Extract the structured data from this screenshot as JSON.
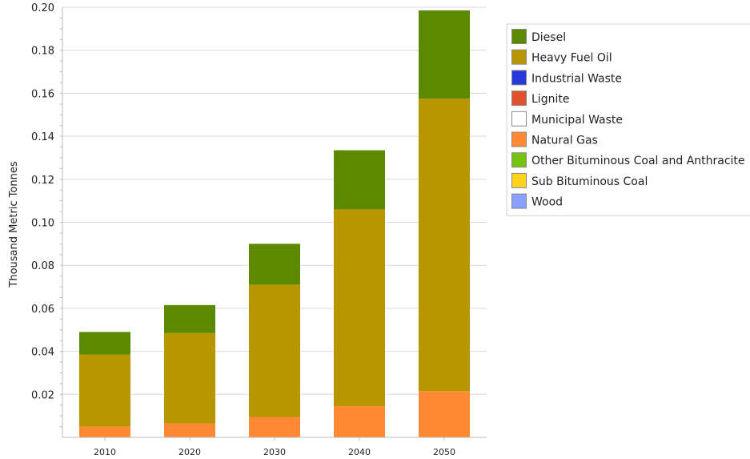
{
  "chart_data": {
    "type": "bar",
    "stacked": true,
    "ylabel": "Thousand Metric Tonnes",
    "xlabel": "",
    "ylim": [
      0,
      0.2
    ],
    "y_ticks": [
      "0.02",
      "0.04",
      "0.06",
      "0.08",
      "0.10",
      "0.12",
      "0.14",
      "0.16",
      "0.18",
      "0.20"
    ],
    "y_tick_values": [
      0.02,
      0.04,
      0.06,
      0.08,
      0.1,
      0.12,
      0.14,
      0.16,
      0.18,
      0.2
    ],
    "categories": [
      "2010",
      "2020",
      "2030",
      "2040",
      "2050"
    ],
    "grid": true,
    "legend_position": "top-right",
    "series": [
      {
        "name": "Diesel",
        "color": "#5b8a00",
        "values": [
          0.0105,
          0.013,
          0.019,
          0.0275,
          0.041
        ]
      },
      {
        "name": "Heavy Fuel Oil",
        "color": "#b89600",
        "values": [
          0.0335,
          0.042,
          0.0615,
          0.0915,
          0.136
        ]
      },
      {
        "name": "Industrial Waste",
        "color": "#2838d8",
        "values": [
          0,
          0,
          0,
          0,
          0
        ]
      },
      {
        "name": "Lignite",
        "color": "#e0502a",
        "values": [
          0,
          0,
          0,
          0,
          0
        ]
      },
      {
        "name": "Municipal Waste",
        "color": "#ffffff",
        "values": [
          0,
          0,
          0,
          0,
          0
        ]
      },
      {
        "name": "Natural Gas",
        "color": "#ff8a33",
        "values": [
          0.005,
          0.0065,
          0.0095,
          0.0145,
          0.0215
        ]
      },
      {
        "name": "Other Bituminous Coal and Anthracite",
        "color": "#78c010",
        "values": [
          0,
          0,
          0,
          0,
          0
        ]
      },
      {
        "name": "Sub Bituminous Coal",
        "color": "#ffd21e",
        "values": [
          0,
          0,
          0,
          0,
          0
        ]
      },
      {
        "name": "Wood",
        "color": "#8aa0ff",
        "values": [
          0,
          0,
          0,
          0,
          0
        ]
      }
    ]
  }
}
